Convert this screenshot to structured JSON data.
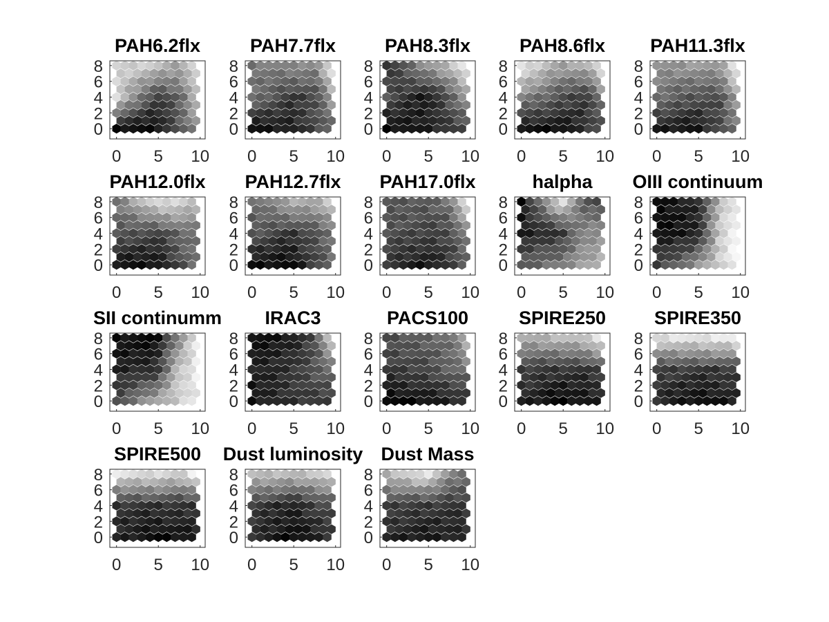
{
  "figure": {
    "background": "#ffffff",
    "colormap": "gray",
    "axis_color": "#262626"
  },
  "chart_data": [
    {
      "type": "heatmap",
      "title": "PAH6.2flx",
      "grid_shape": "hexagonal",
      "xlim": [
        0,
        10
      ],
      "ylim": [
        0,
        8
      ],
      "xticks": [
        "0",
        "5",
        "10"
      ],
      "yticks": [
        "0",
        "2",
        "4",
        "6",
        "8"
      ],
      "pattern": [
        0.82,
        0.78,
        0.62,
        0.88,
        0.84,
        0.22,
        0.4,
        0.72,
        0.06,
        0.06,
        0.55
      ]
    },
    {
      "type": "heatmap",
      "title": "PAH7.7flx",
      "grid_shape": "hexagonal",
      "xlim": [
        0,
        10
      ],
      "ylim": [
        0,
        8
      ],
      "xticks": [
        "0",
        "5",
        "10"
      ],
      "yticks": [
        "0",
        "2",
        "4",
        "6",
        "8"
      ],
      "pattern": [
        0.45,
        0.55,
        0.52,
        0.92,
        0.45,
        0.22,
        0.28,
        0.62,
        0.06,
        0.12,
        0.4
      ]
    },
    {
      "type": "heatmap",
      "title": "PAH8.3flx",
      "grid_shape": "hexagonal",
      "xlim": [
        0,
        10
      ],
      "ylim": [
        0,
        8
      ],
      "xticks": [
        "0",
        "5",
        "10"
      ],
      "yticks": [
        "0",
        "2",
        "4",
        "6",
        "8"
      ],
      "pattern": [
        0.18,
        0.58,
        0.72,
        0.93,
        0.32,
        0.08,
        0.36,
        0.58,
        0.04,
        0.12,
        0.3
      ]
    },
    {
      "type": "heatmap",
      "title": "PAH8.6flx",
      "grid_shape": "hexagonal",
      "xlim": [
        0,
        10
      ],
      "ylim": [
        0,
        8
      ],
      "xticks": [
        "0",
        "5",
        "10"
      ],
      "yticks": [
        "0",
        "2",
        "4",
        "6",
        "8"
      ],
      "pattern": [
        0.92,
        0.62,
        0.68,
        0.9,
        0.52,
        0.32,
        0.18,
        0.48,
        0.08,
        0.06,
        0.3
      ]
    },
    {
      "type": "heatmap",
      "title": "PAH11.3flx",
      "grid_shape": "hexagonal",
      "xlim": [
        0,
        10
      ],
      "ylim": [
        0,
        8
      ],
      "xticks": [
        "0",
        "5",
        "10"
      ],
      "yticks": [
        "0",
        "2",
        "4",
        "6",
        "8"
      ],
      "pattern": [
        0.55,
        0.6,
        0.62,
        0.92,
        0.45,
        0.3,
        0.3,
        0.65,
        0.12,
        0.08,
        0.45
      ]
    },
    {
      "type": "heatmap",
      "title": "PAH12.0flx",
      "grid_shape": "hexagonal",
      "xlim": [
        0,
        10
      ],
      "ylim": [
        0,
        8
      ],
      "xticks": [
        "0",
        "5",
        "10"
      ],
      "yticks": [
        "0",
        "2",
        "4",
        "6",
        "8"
      ],
      "pattern": [
        0.45,
        0.88,
        0.82,
        0.72,
        0.35,
        0.25,
        0.4,
        0.45,
        0.08,
        0.06,
        0.45
      ]
    },
    {
      "type": "heatmap",
      "title": "PAH12.7flx",
      "grid_shape": "hexagonal",
      "xlim": [
        0,
        10
      ],
      "ylim": [
        0,
        8
      ],
      "xticks": [
        "0",
        "5",
        "10"
      ],
      "yticks": [
        "0",
        "2",
        "4",
        "6",
        "8"
      ],
      "pattern": [
        0.4,
        0.68,
        0.65,
        0.8,
        0.35,
        0.2,
        0.32,
        0.45,
        0.06,
        0.04,
        0.42
      ]
    },
    {
      "type": "heatmap",
      "title": "PAH17.0flx",
      "grid_shape": "hexagonal",
      "xlim": [
        0,
        10
      ],
      "ylim": [
        0,
        8
      ],
      "xticks": [
        "0",
        "5",
        "10"
      ],
      "yticks": [
        "0",
        "2",
        "4",
        "6",
        "8"
      ],
      "pattern": [
        0.35,
        0.35,
        0.45,
        0.95,
        0.32,
        0.25,
        0.28,
        0.5,
        0.2,
        0.08,
        0.35
      ]
    },
    {
      "type": "heatmap",
      "title": "halpha",
      "grid_shape": "hexagonal",
      "xlim": [
        0,
        10
      ],
      "ylim": [
        0,
        8
      ],
      "xticks": [
        "0",
        "5",
        "10"
      ],
      "yticks": [
        "0",
        "2",
        "4",
        "6",
        "8"
      ],
      "pattern": [
        0.06,
        0.88,
        0.35,
        0.3,
        0.12,
        0.2,
        0.55,
        0.55,
        0.35,
        0.5,
        0.7
      ]
    },
    {
      "type": "heatmap",
      "title": "OIII continuum",
      "grid_shape": "hexagonal",
      "xlim": [
        0,
        10
      ],
      "ylim": [
        0,
        8
      ],
      "xticks": [
        "0",
        "5",
        "10"
      ],
      "yticks": [
        "0",
        "2",
        "4",
        "6",
        "8"
      ],
      "pattern": [
        0.04,
        0.15,
        0.72,
        0.92,
        0.06,
        0.1,
        0.82,
        0.95,
        0.25,
        0.55,
        0.97
      ]
    },
    {
      "type": "heatmap",
      "title": "SII continumm",
      "grid_shape": "hexagonal",
      "xlim": [
        0,
        10
      ],
      "ylim": [
        0,
        8
      ],
      "xticks": [
        "0",
        "5",
        "10"
      ],
      "yticks": [
        "0",
        "2",
        "4",
        "6",
        "8"
      ],
      "pattern": [
        0.06,
        0.04,
        0.55,
        0.92,
        0.12,
        0.18,
        0.8,
        0.9,
        0.3,
        0.65,
        0.92
      ]
    },
    {
      "type": "heatmap",
      "title": "IRAC3",
      "grid_shape": "hexagonal",
      "xlim": [
        0,
        10
      ],
      "ylim": [
        0,
        8
      ],
      "xticks": [
        "0",
        "5",
        "10"
      ],
      "yticks": [
        "0",
        "2",
        "4",
        "6",
        "8"
      ],
      "pattern": [
        0.06,
        0.1,
        0.3,
        0.85,
        0.12,
        0.2,
        0.35,
        0.4,
        0.08,
        0.2,
        0.25
      ]
    },
    {
      "type": "heatmap",
      "title": "PACS100",
      "grid_shape": "hexagonal",
      "xlim": [
        0,
        10
      ],
      "ylim": [
        0,
        8
      ],
      "xticks": [
        "0",
        "5",
        "10"
      ],
      "yticks": [
        "0",
        "2",
        "4",
        "6",
        "8"
      ],
      "pattern": [
        0.3,
        0.38,
        0.42,
        0.72,
        0.22,
        0.28,
        0.38,
        0.45,
        0.02,
        0.08,
        0.18
      ]
    },
    {
      "type": "heatmap",
      "title": "SPIRE250",
      "grid_shape": "hexagonal",
      "xlim": [
        0,
        10
      ],
      "ylim": [
        0,
        8
      ],
      "xticks": [
        "0",
        "5",
        "10"
      ],
      "yticks": [
        "0",
        "2",
        "4",
        "6",
        "8"
      ],
      "pattern": [
        0.65,
        0.72,
        0.78,
        0.9,
        0.25,
        0.2,
        0.2,
        0.28,
        0.15,
        0.03,
        0.12
      ]
    },
    {
      "type": "heatmap",
      "title": "SPIRE350",
      "grid_shape": "hexagonal",
      "xlim": [
        0,
        10
      ],
      "ylim": [
        0,
        8
      ],
      "xticks": [
        "0",
        "5",
        "10"
      ],
      "yticks": [
        "0",
        "2",
        "4",
        "6",
        "8"
      ],
      "pattern": [
        0.85,
        0.9,
        0.9,
        0.95,
        0.25,
        0.22,
        0.22,
        0.25,
        0.18,
        0.04,
        0.12
      ]
    },
    {
      "type": "heatmap",
      "title": "SPIRE500",
      "grid_shape": "hexagonal",
      "xlim": [
        0,
        10
      ],
      "ylim": [
        0,
        8
      ],
      "xticks": [
        "0",
        "5",
        "10"
      ],
      "yticks": [
        "0",
        "2",
        "4",
        "6",
        "8"
      ],
      "pattern": [
        0.88,
        0.85,
        0.78,
        0.95,
        0.2,
        0.2,
        0.2,
        0.2,
        0.15,
        0.04,
        0.12
      ]
    },
    {
      "type": "heatmap",
      "title": "Dust luminosity",
      "grid_shape": "hexagonal",
      "xlim": [
        0,
        10
      ],
      "ylim": [
        0,
        8
      ],
      "xticks": [
        "0",
        "5",
        "10"
      ],
      "yticks": [
        "0",
        "2",
        "4",
        "6",
        "8"
      ],
      "pattern": [
        0.75,
        0.72,
        0.75,
        0.88,
        0.25,
        0.12,
        0.25,
        0.28,
        0.18,
        0.04,
        0.2
      ]
    },
    {
      "type": "heatmap",
      "title": "Dust Mass",
      "grid_shape": "hexagonal",
      "xlim": [
        0,
        10
      ],
      "ylim": [
        0,
        8
      ],
      "xticks": [
        "0",
        "5",
        "10"
      ],
      "yticks": [
        "0",
        "2",
        "4",
        "6",
        "8"
      ],
      "pattern": [
        0.7,
        0.9,
        0.55,
        0.45,
        0.25,
        0.22,
        0.2,
        0.22,
        0.15,
        0.1,
        0.15
      ]
    }
  ]
}
